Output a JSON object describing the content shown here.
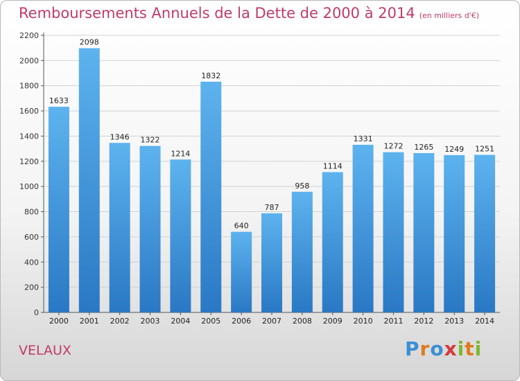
{
  "chart_data": {
    "type": "bar",
    "title": "Remboursements Annuels de la Dette de 2000 à 2014",
    "unit": "(en milliers d'€)",
    "categories": [
      "2000",
      "2001",
      "2002",
      "2003",
      "2004",
      "2005",
      "2006",
      "2007",
      "2008",
      "2009",
      "2010",
      "2011",
      "2012",
      "2013",
      "2014"
    ],
    "values": [
      1633,
      2098,
      1346,
      1322,
      1214,
      1832,
      640,
      787,
      958,
      1114,
      1331,
      1272,
      1265,
      1249,
      1251
    ],
    "ylim": [
      0,
      2200
    ],
    "yticks": [
      "0",
      "200",
      "400",
      "600",
      "800",
      "1000",
      "1200",
      "1400",
      "1600",
      "1800",
      "2000",
      "2200"
    ],
    "grid": true,
    "bar_color": "#3d8fd8"
  },
  "footer": {
    "city": "VELAUX"
  },
  "logo": {
    "letters": [
      "P",
      "r",
      "o",
      "x",
      "i",
      "t",
      "i"
    ],
    "colors": [
      "#3a8fd6",
      "#e07a1f",
      "#3a8fd6",
      "#d63a3a",
      "#7cb82f",
      "#e07a1f",
      "#7cb82f"
    ]
  }
}
